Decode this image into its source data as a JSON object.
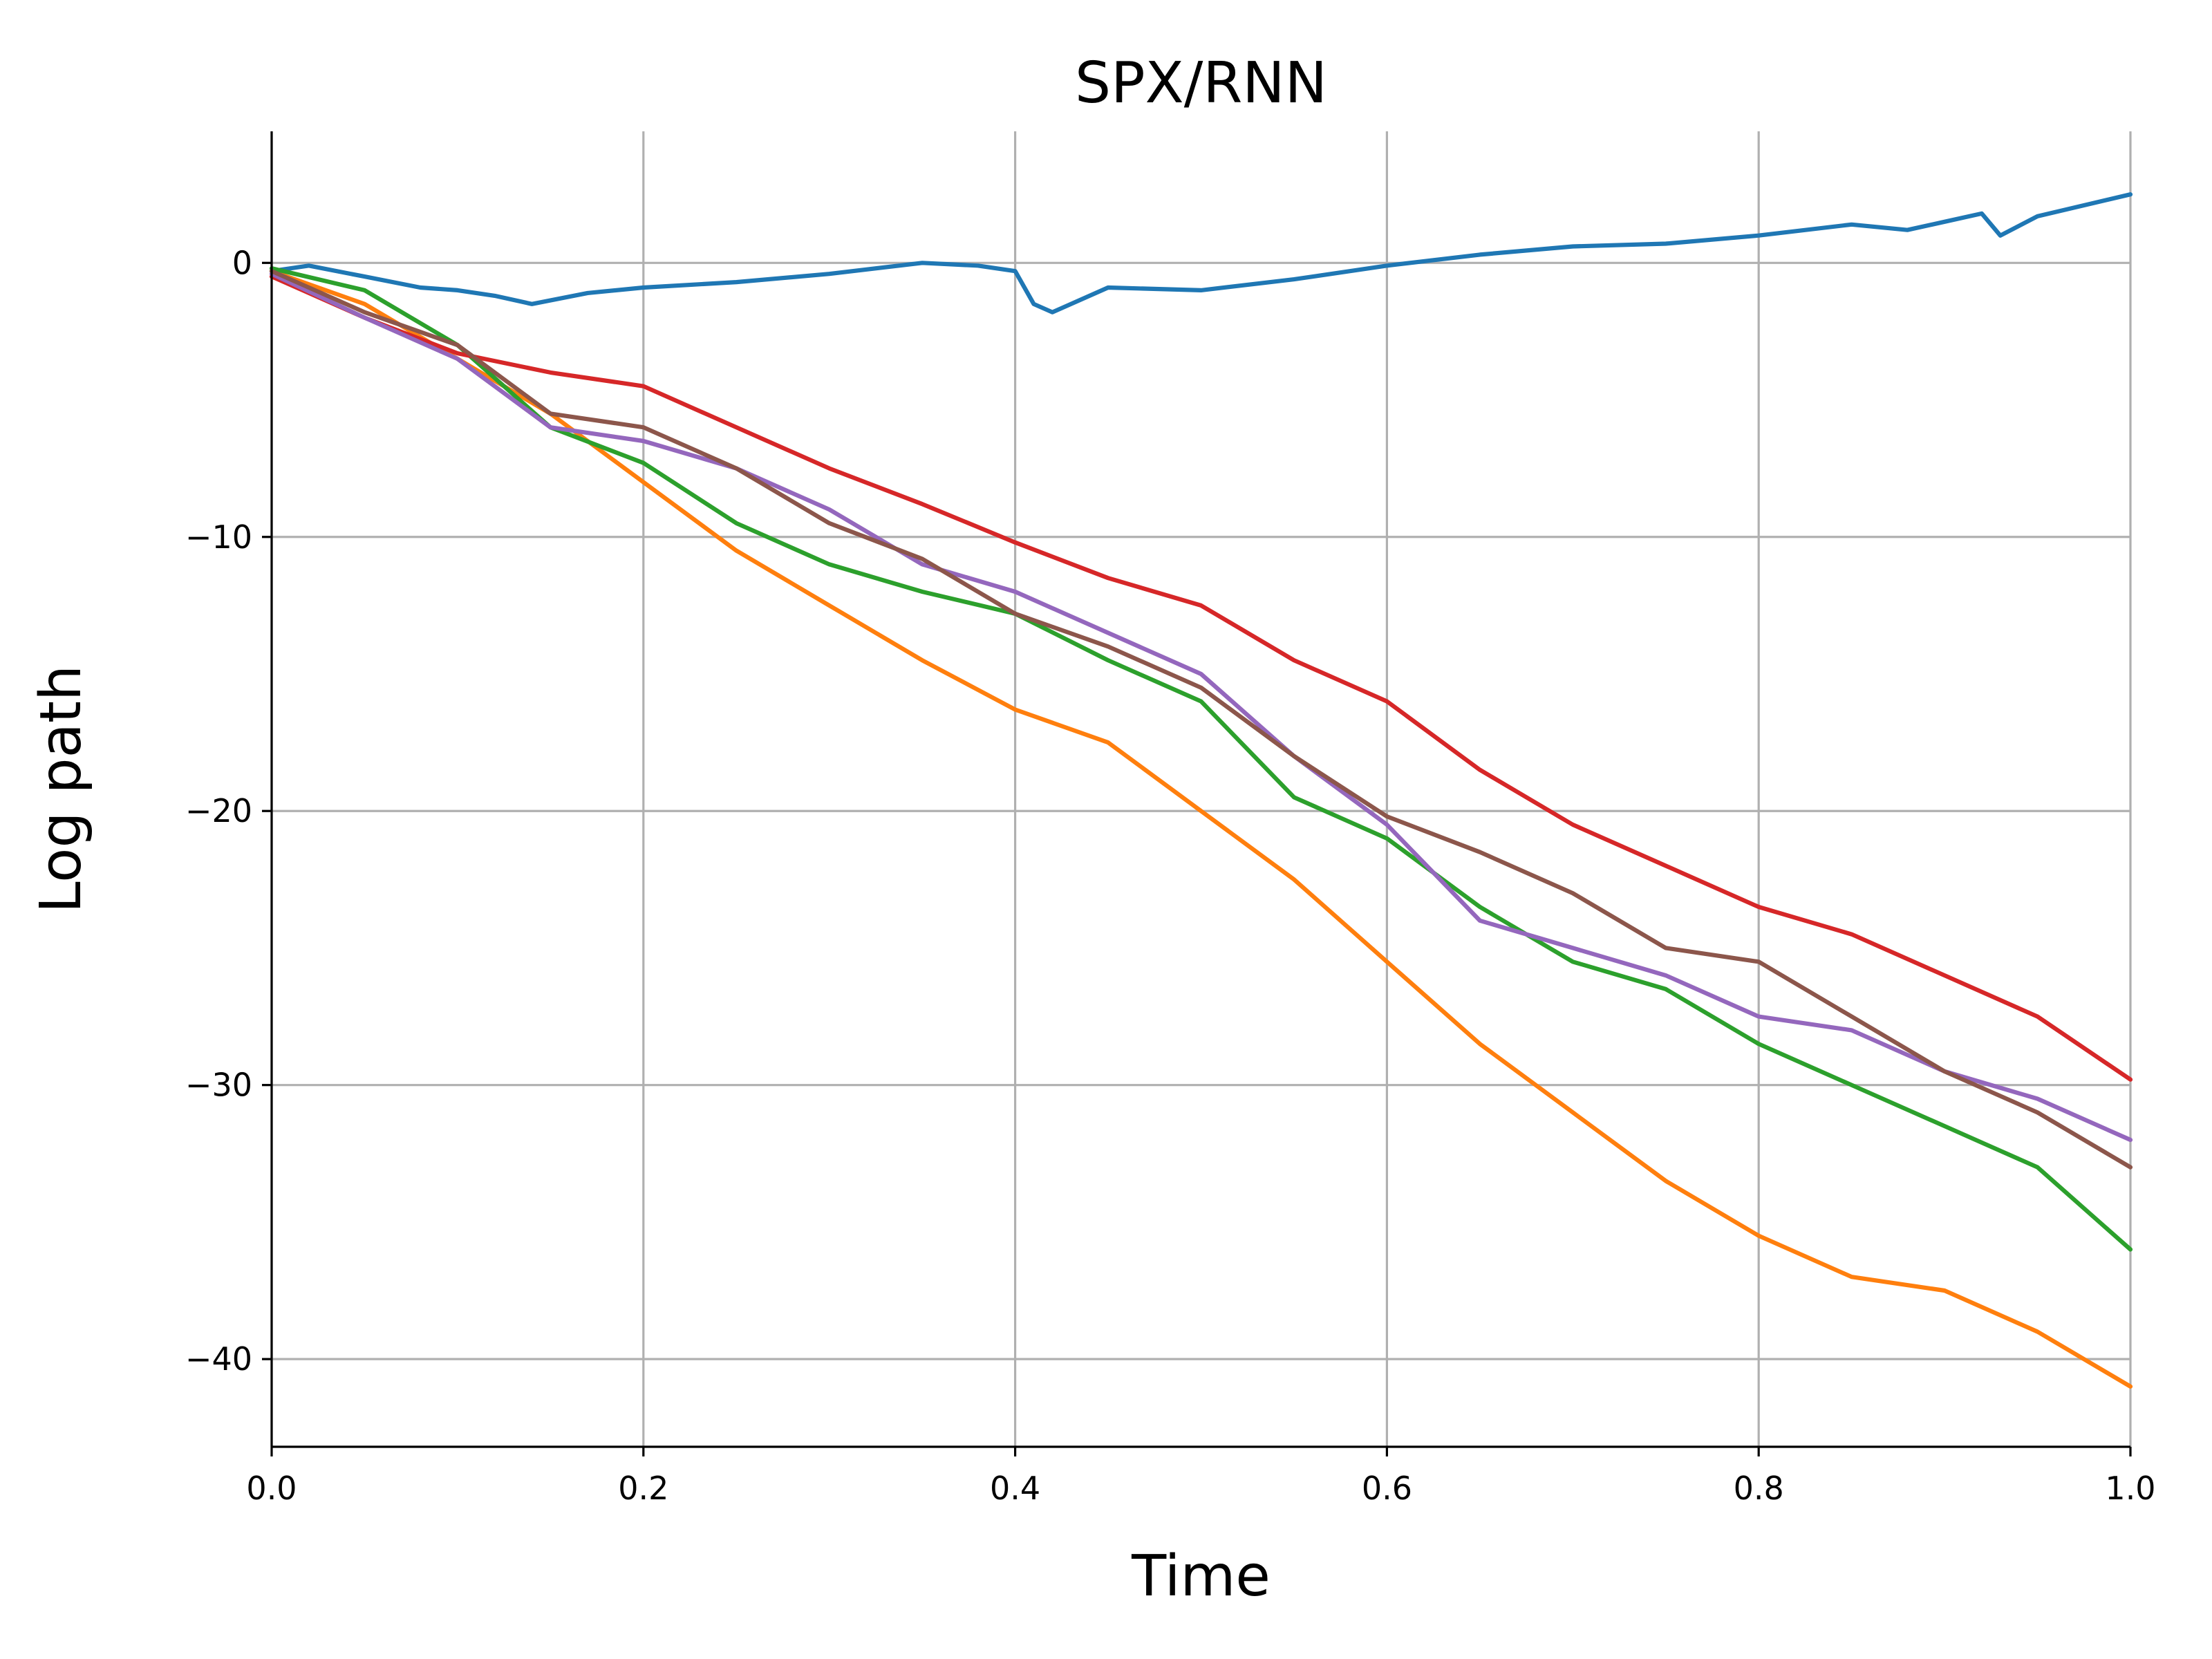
{
  "chart_data": {
    "type": "line",
    "title": "SPX/RNN",
    "xlabel": "Time",
    "ylabel": "Log path",
    "xlim": [
      0.0,
      1.0
    ],
    "ylim": [
      -43.2,
      4.8
    ],
    "xticks": [
      0.0,
      0.2,
      0.4,
      0.6,
      0.8,
      1.0
    ],
    "xtick_labels": [
      "0.0",
      "0.2",
      "0.4",
      "0.6",
      "0.8",
      "1.0"
    ],
    "yticks": [
      0,
      -10,
      -20,
      -30,
      -40
    ],
    "ytick_labels": [
      "0",
      "−10",
      "−20",
      "−30",
      "−40"
    ],
    "grid": true,
    "legend": "none",
    "series": [
      {
        "color": "#1f77b4",
        "x": [
          0,
          0.02,
          0.05,
          0.08,
          0.1,
          0.12,
          0.14,
          0.17,
          0.2,
          0.25,
          0.3,
          0.35,
          0.38,
          0.4,
          0.41,
          0.42,
          0.45,
          0.5,
          0.55,
          0.6,
          0.65,
          0.7,
          0.75,
          0.8,
          0.85,
          0.88,
          0.9,
          0.92,
          0.93,
          0.95,
          1.0
        ],
        "y": [
          -0.3,
          -0.1,
          -0.5,
          -0.9,
          -1.0,
          -1.2,
          -1.5,
          -1.1,
          -0.9,
          -0.7,
          -0.4,
          0.0,
          -0.1,
          -0.3,
          -1.5,
          -1.8,
          -0.9,
          -1.0,
          -0.6,
          -0.1,
          0.3,
          0.6,
          0.7,
          1.0,
          1.4,
          1.2,
          1.5,
          1.8,
          1.0,
          1.7,
          2.5
        ]
      },
      {
        "color": "#ff7f0e",
        "x": [
          0,
          0.05,
          0.1,
          0.15,
          0.2,
          0.25,
          0.3,
          0.35,
          0.4,
          0.45,
          0.5,
          0.55,
          0.6,
          0.65,
          0.7,
          0.75,
          0.8,
          0.85,
          0.9,
          0.95,
          1.0
        ],
        "y": [
          -0.3,
          -1.5,
          -3.5,
          -5.5,
          -8.0,
          -10.5,
          -12.5,
          -14.5,
          -16.3,
          -17.5,
          -20.0,
          -22.5,
          -25.5,
          -28.5,
          -31.0,
          -33.5,
          -35.5,
          -37.0,
          -37.5,
          -39.0,
          -41.0
        ]
      },
      {
        "color": "#2ca02c",
        "x": [
          0,
          0.05,
          0.1,
          0.15,
          0.2,
          0.25,
          0.3,
          0.35,
          0.4,
          0.45,
          0.5,
          0.55,
          0.6,
          0.65,
          0.7,
          0.75,
          0.8,
          0.85,
          0.9,
          0.95,
          1.0
        ],
        "y": [
          -0.2,
          -1.0,
          -3.0,
          -6.0,
          -7.3,
          -9.5,
          -11.0,
          -12.0,
          -12.8,
          -14.5,
          -16.0,
          -19.5,
          -21.0,
          -23.5,
          -25.5,
          -26.5,
          -28.5,
          -30.0,
          -31.5,
          -33.0,
          -36.0
        ]
      },
      {
        "color": "#d62728",
        "x": [
          0,
          0.05,
          0.1,
          0.15,
          0.2,
          0.25,
          0.3,
          0.35,
          0.4,
          0.45,
          0.5,
          0.55,
          0.6,
          0.65,
          0.7,
          0.75,
          0.8,
          0.85,
          0.9,
          0.95,
          1.0
        ],
        "y": [
          -0.5,
          -2.0,
          -3.3,
          -4.0,
          -4.5,
          -6.0,
          -7.5,
          -8.8,
          -10.2,
          -11.5,
          -12.5,
          -14.5,
          -16.0,
          -18.5,
          -20.5,
          -22.0,
          -23.5,
          -24.5,
          -26.0,
          -27.5,
          -29.8
        ]
      },
      {
        "color": "#9467bd",
        "x": [
          0,
          0.05,
          0.1,
          0.15,
          0.2,
          0.25,
          0.3,
          0.35,
          0.4,
          0.45,
          0.5,
          0.55,
          0.6,
          0.65,
          0.7,
          0.75,
          0.8,
          0.85,
          0.9,
          0.95,
          1.0
        ],
        "y": [
          -0.4,
          -2.0,
          -3.5,
          -6.0,
          -6.5,
          -7.5,
          -9.0,
          -11.0,
          -12.0,
          -13.5,
          -15.0,
          -18.0,
          -20.5,
          -24.0,
          -25.0,
          -26.0,
          -27.5,
          -28.0,
          -29.5,
          -30.5,
          -32.0
        ]
      },
      {
        "color": "#8c564b",
        "x": [
          0,
          0.05,
          0.1,
          0.15,
          0.2,
          0.25,
          0.3,
          0.35,
          0.4,
          0.45,
          0.5,
          0.55,
          0.6,
          0.65,
          0.7,
          0.75,
          0.8,
          0.85,
          0.9,
          0.95,
          1.0
        ],
        "y": [
          -0.3,
          -1.8,
          -3.0,
          -5.5,
          -6.0,
          -7.5,
          -9.5,
          -10.8,
          -12.8,
          -14.0,
          -15.5,
          -18.0,
          -20.2,
          -21.5,
          -23.0,
          -25.0,
          -25.5,
          -27.5,
          -29.5,
          -31.0,
          -33.0
        ]
      }
    ]
  }
}
